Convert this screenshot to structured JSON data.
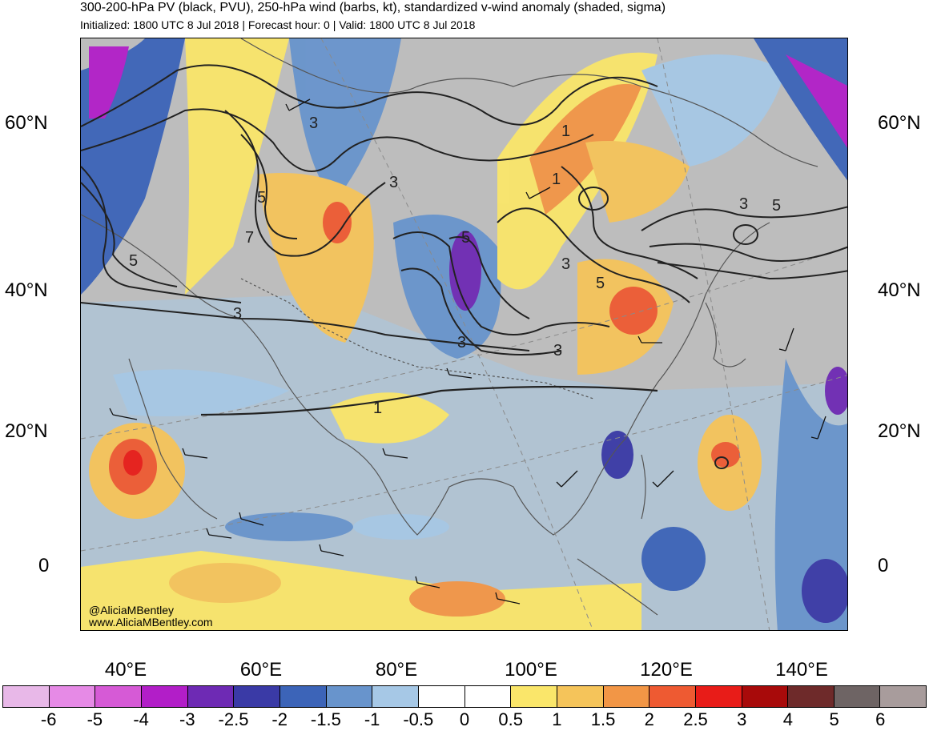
{
  "header": {
    "title": "300-200-hPa PV (black, PVU), 250-hPa wind (barbs, kt), standardized v-wind anomaly (shaded, sigma)",
    "subtitle": "Initialized: 1800 UTC 8 Jul 2018 | Forecast hour: 0 | Valid: 1800 UTC 8 Jul 2018"
  },
  "map": {
    "lat_labels": [
      "60°N",
      "40°N",
      "20°N",
      "0"
    ],
    "lon_labels": [
      "40°E",
      "60°E",
      "80°E",
      "100°E",
      "120°E",
      "140°E"
    ],
    "contour_labels": [
      "3",
      "5",
      "7",
      "1",
      "3",
      "5",
      "3",
      "3",
      "1",
      "5",
      "3",
      "1",
      "3",
      "5",
      "3",
      "5"
    ],
    "credit_handle": "@AliciaMBentley",
    "credit_url": "www.AliciaMBentley.com",
    "land_color": "#bdbdbd",
    "coast_color": "#555555"
  },
  "colorbar": {
    "colors": [
      "#e8b8e8",
      "#e68ae6",
      "#d65ad6",
      "#b21ec8",
      "#6e2ab4",
      "#3a3aa6",
      "#3c64b8",
      "#6894cc",
      "#a6c8e6",
      "#ffffff",
      "#ffffff",
      "#fae66a",
      "#f5c45a",
      "#f29646",
      "#ee5a32",
      "#e81c18",
      "#a80a0a",
      "#6e2a2a",
      "#6e6464",
      "#a89c9c"
    ],
    "labels": [
      "-6",
      "-5",
      "-4",
      "-3",
      "-2.5",
      "-2",
      "-1.5",
      "-1",
      "-0.5",
      "0",
      "0.5",
      "1",
      "1.5",
      "2",
      "2.5",
      "3",
      "4",
      "5",
      "6"
    ]
  }
}
